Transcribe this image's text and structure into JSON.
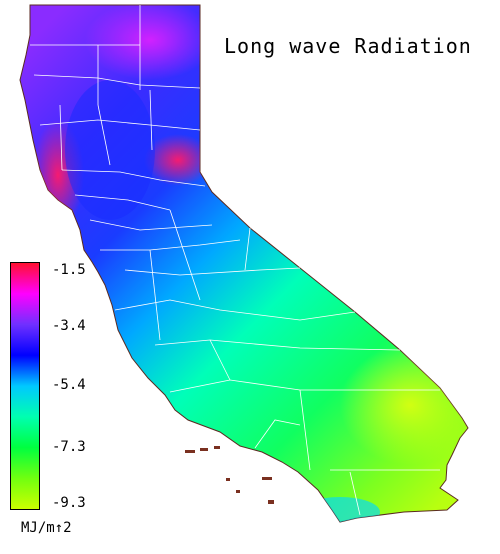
{
  "title": "Long wave Radiation",
  "legend": {
    "ticks": [
      "-1.5",
      "-3.4",
      "-5.4",
      "-7.3",
      "-9.3"
    ],
    "units": "MJ/m↑2",
    "gradient": [
      "#ff1030",
      "#ff00ff",
      "#7030ff",
      "#0000ff",
      "#00c8ff",
      "#00ffb0",
      "#00ff40",
      "#70ff10",
      "#ccff00"
    ]
  },
  "map": {
    "colors": {
      "north_high": "#ff1a7a",
      "north": "#8f2cff",
      "central": "#1a3cff",
      "central_coast": "#00b8ff",
      "valley": "#00f0c0",
      "south": "#28ff5a",
      "desert": "#c6ff10",
      "boundaries": "#ffffff",
      "islands": "#7a3020"
    }
  }
}
